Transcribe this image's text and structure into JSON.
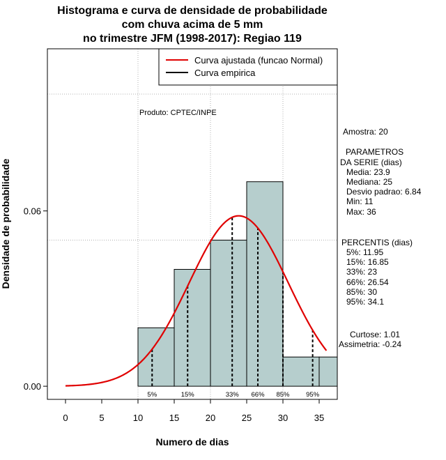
{
  "chart_data": {
    "type": "histogram",
    "title_lines": [
      "Histograma e curva de densidade de probabilidade",
      "com chuva acima de 5 mm",
      "no trimestre JFM (1998-2017): Regiao 119"
    ],
    "xlabel": "Numero de dias",
    "ylabel": "Densidade de probabilidade",
    "xlim": [
      -2.5,
      37.5
    ],
    "ylim": [
      -0.0045,
      0.1155
    ],
    "x_ticks": [
      0,
      5,
      10,
      15,
      20,
      25,
      30,
      35
    ],
    "y_ticks": [
      0.0,
      0.06
    ],
    "y_tick_labels": [
      "0.00",
      "0.06"
    ],
    "grid_x": [
      10,
      20,
      30
    ],
    "grid_y": [
      0.05,
      0.1
    ],
    "bins": [
      {
        "x0": 10,
        "x1": 15,
        "density": 0.02
      },
      {
        "x0": 15,
        "x1": 20,
        "density": 0.04
      },
      {
        "x0": 20,
        "x1": 25,
        "density": 0.05
      },
      {
        "x0": 25,
        "x1": 30,
        "density": 0.07
      },
      {
        "x0": 30,
        "x1": 35,
        "density": 0.01
      },
      {
        "x0": 35,
        "x1": 40,
        "density": 0.01
      }
    ],
    "normal_fit": {
      "mean": 23.9,
      "sd": 6.84,
      "x_from": 0,
      "x_to": 36
    },
    "percentiles": [
      {
        "label": "5%",
        "value": 11.95
      },
      {
        "label": "15%",
        "value": 16.85
      },
      {
        "label": "33%",
        "value": 23
      },
      {
        "label": "66%",
        "value": 26.54
      },
      {
        "label": "85%",
        "value": 30
      },
      {
        "label": "95%",
        "value": 34.1
      }
    ],
    "legend": [
      {
        "label": "Curva ajustada (funcao Normal)",
        "color": "#e00000"
      },
      {
        "label": "Curva empirica",
        "color": "#000000"
      }
    ],
    "legend_position": "top-right",
    "bar_color": "#b6cecd",
    "curve_color": "#e00000",
    "credit": "Produto: CPTEC/INPE"
  },
  "stats_panel": {
    "amostra": "Amostra: 20",
    "params_header": [
      "PARAMETROS",
      "DA SERIE (dias)"
    ],
    "params": [
      "Media: 23.9",
      "Mediana: 25",
      "Desvio padrao: 6.84",
      "Min: 11",
      "Max: 36"
    ],
    "percentis_header": "PERCENTIS (dias)",
    "percentis": [
      "5%: 11.95",
      "15%: 16.85",
      "33%: 23",
      "66%: 26.54",
      "85%: 30",
      "95%: 34.1"
    ],
    "curtose": "Curtose: 1.01",
    "assimetria": "Assimetria: -0.24"
  }
}
